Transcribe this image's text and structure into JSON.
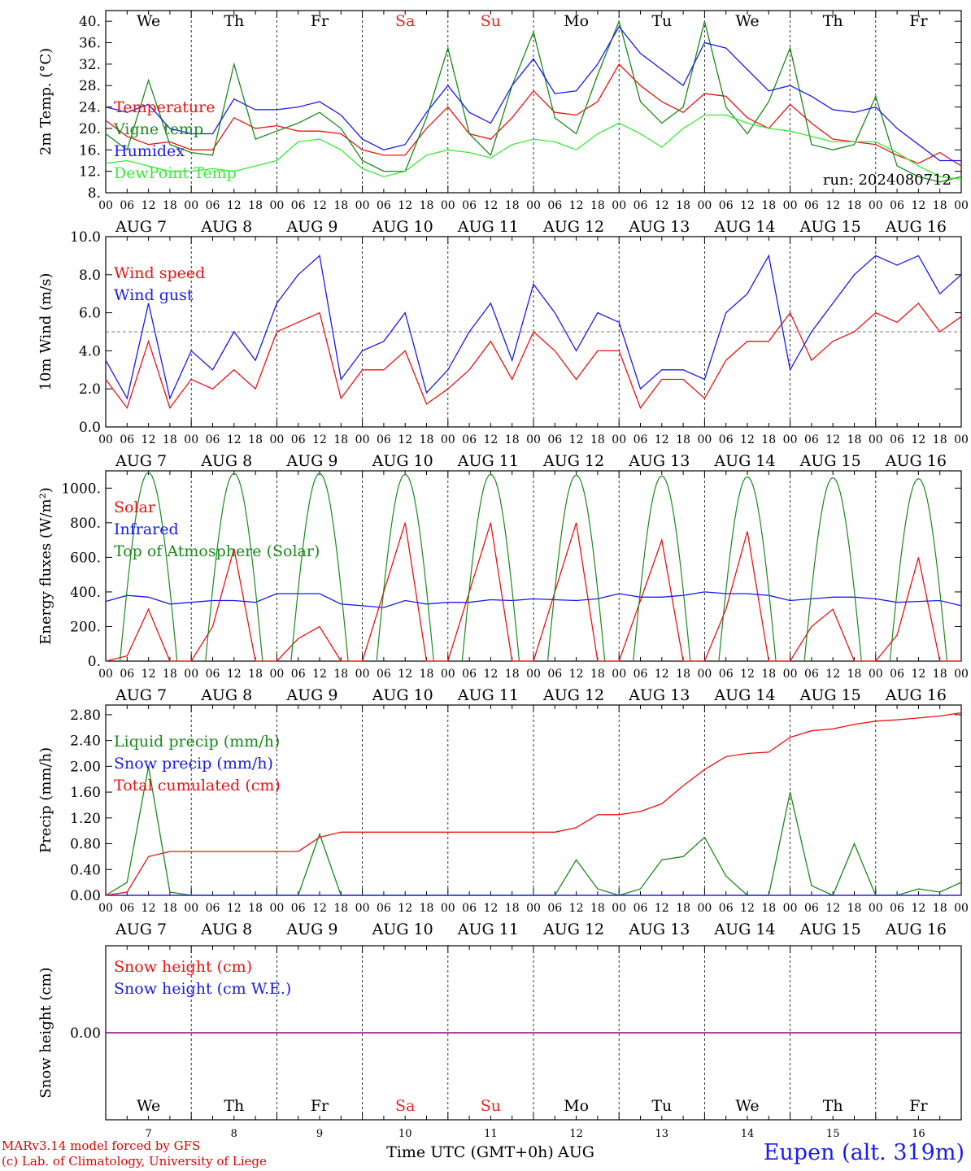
{
  "colors": {
    "red": "#ee1111",
    "green": "#1a8a1a",
    "blue": "#1a1aee",
    "lightgreen": "#33ee33",
    "purple": "#800080",
    "weekend": "#ee2222"
  },
  "time_axis": {
    "hour_labels": [
      "00",
      "06",
      "12",
      "18"
    ],
    "final_hour": "00",
    "dates": [
      "AUG  7",
      "AUG  8",
      "AUG  9",
      "AUG 10",
      "AUG 11",
      "AUG 12",
      "AUG 13",
      "AUG 14",
      "AUG 15",
      "AUG 16"
    ],
    "weekdays": [
      {
        "label": "We",
        "weekend": false
      },
      {
        "label": "Th",
        "weekend": false
      },
      {
        "label": "Fr",
        "weekend": false
      },
      {
        "label": "Sa",
        "weekend": true
      },
      {
        "label": "Su",
        "weekend": true
      },
      {
        "label": "Mo",
        "weekend": false
      },
      {
        "label": "Tu",
        "weekend": false
      },
      {
        "label": "We",
        "weekend": false
      },
      {
        "label": "Th",
        "weekend": false
      },
      {
        "label": "Fr",
        "weekend": false
      }
    ],
    "day_numbers": [
      "7",
      "8",
      "9",
      "10",
      "11",
      "12",
      "13",
      "14",
      "15",
      "16"
    ],
    "xlabel": "Time UTC (GMT+0h)",
    "month": "AUG"
  },
  "chart_data": [
    {
      "type": "line",
      "ylabel": "2m Temp. (°C)",
      "ylim": [
        8,
        42
      ],
      "yticks": [
        "8.",
        "12.",
        "16.",
        "20.",
        "24.",
        "28.",
        "32.",
        "36.",
        "40."
      ],
      "annotation": "run: 2024080712",
      "x_hours": [
        0,
        6,
        12,
        18,
        24,
        30,
        36,
        42,
        48,
        54,
        60,
        66,
        72,
        78,
        84,
        90,
        96,
        102,
        108,
        114,
        120,
        126,
        132,
        138,
        144,
        150,
        156,
        162,
        168,
        174,
        180,
        186,
        192,
        198,
        204,
        210,
        216,
        222,
        228,
        234,
        240
      ],
      "series": [
        {
          "name": "Temperature",
          "color": "red",
          "values": [
            21.5,
            18.5,
            17,
            17.5,
            16,
            16,
            22,
            20,
            20.5,
            19.5,
            19.5,
            19,
            16,
            15,
            15,
            20,
            24,
            19,
            18,
            22,
            27,
            23,
            22.5,
            25,
            32,
            28,
            25,
            23,
            26.5,
            26,
            22,
            20,
            24.5,
            21,
            18,
            17.5,
            17,
            15,
            13.5,
            15.5,
            13
          ]
        },
        {
          "name": "Vigne temp",
          "color": "green",
          "values": [
            19,
            16,
            29,
            17,
            15.5,
            15,
            32,
            18,
            19.5,
            21,
            23,
            20,
            14,
            12,
            12,
            22,
            35,
            19,
            15,
            28,
            38,
            22,
            19,
            30,
            40,
            25,
            21,
            24,
            40,
            24,
            19,
            25,
            35,
            17,
            16,
            17,
            26,
            13,
            11,
            10,
            11
          ]
        },
        {
          "name": "Humidex",
          "color": "blue",
          "values": [
            24,
            23,
            24.5,
            20,
            19,
            19,
            25.5,
            23.5,
            23.5,
            24,
            25,
            22.5,
            18,
            16,
            17,
            23,
            28,
            23,
            21,
            28,
            33,
            26.5,
            27,
            32,
            39,
            34,
            31,
            28,
            36,
            35,
            31,
            27,
            28,
            26,
            23.5,
            23,
            24,
            20,
            17,
            14,
            14
          ]
        },
        {
          "name": "DewPoint Temp",
          "color": "lightgreen",
          "values": [
            13.5,
            14,
            13,
            12,
            12,
            12.5,
            12,
            13,
            14,
            17.5,
            18,
            16,
            12.5,
            11,
            12,
            15,
            16,
            15.5,
            14.5,
            17,
            18,
            17.5,
            16,
            19,
            21,
            19,
            16.5,
            20,
            22.5,
            22.5,
            21,
            20,
            19.5,
            18.5,
            17.5,
            17.5,
            17.5,
            15.5,
            13,
            11,
            10.5
          ]
        }
      ]
    },
    {
      "type": "line",
      "ylabel": "10m Wind (m/s)",
      "ylim": [
        0,
        10
      ],
      "yticks": [
        "0.0",
        "2.0",
        "4.0",
        "6.0",
        "8.0",
        "10.0"
      ],
      "reference_line": 5,
      "x_hours": [
        0,
        6,
        12,
        18,
        24,
        30,
        36,
        42,
        48,
        54,
        60,
        66,
        72,
        78,
        84,
        90,
        96,
        102,
        108,
        114,
        120,
        126,
        132,
        138,
        144,
        150,
        156,
        162,
        168,
        174,
        180,
        186,
        192,
        198,
        204,
        210,
        216,
        222,
        228,
        234,
        240
      ],
      "series": [
        {
          "name": "Wind speed",
          "color": "red",
          "values": [
            2.5,
            1,
            4.5,
            1,
            2.5,
            2,
            3,
            2,
            5,
            5.5,
            6,
            1.5,
            3,
            3,
            4,
            1.2,
            2,
            3,
            4.5,
            2.5,
            5,
            4,
            2.5,
            4,
            4,
            1,
            2.5,
            2.5,
            1.5,
            3.5,
            4.5,
            4.5,
            6,
            3.5,
            4.5,
            5,
            6,
            5.5,
            6.5,
            5,
            5.8
          ]
        },
        {
          "name": "Wind gust",
          "color": "blue",
          "values": [
            3.5,
            1.5,
            6.5,
            1.5,
            4,
            3,
            5,
            3.5,
            6.5,
            8,
            9,
            2.5,
            4,
            4.5,
            6,
            1.8,
            3,
            5,
            6.5,
            3.5,
            7.5,
            6,
            4,
            6,
            5.5,
            2,
            3,
            3,
            2.5,
            6,
            7,
            9,
            3,
            5,
            6.5,
            8,
            9,
            8.5,
            9,
            7,
            8
          ]
        }
      ]
    },
    {
      "type": "line",
      "ylabel": "Energy fluxes (W/m²)",
      "ylim": [
        0,
        1100
      ],
      "yticks": [
        "0.",
        "200.",
        "400.",
        "600.",
        "800.",
        "1000."
      ],
      "x_hours": [
        0,
        6,
        12,
        18,
        24,
        30,
        36,
        42,
        48,
        54,
        60,
        66,
        72,
        78,
        84,
        90,
        96,
        102,
        108,
        114,
        120,
        126,
        132,
        138,
        144,
        150,
        156,
        162,
        168,
        174,
        180,
        186,
        192,
        198,
        204,
        210,
        216,
        222,
        228,
        234,
        240
      ],
      "series": [
        {
          "name": "Solar",
          "color": "red",
          "values": [
            0,
            30,
            300,
            0,
            0,
            200,
            650,
            0,
            0,
            130,
            200,
            0,
            0,
            400,
            800,
            0,
            0,
            400,
            800,
            0,
            0,
            400,
            800,
            0,
            0,
            350,
            700,
            0,
            0,
            300,
            750,
            0,
            0,
            200,
            300,
            0,
            0,
            150,
            600,
            0,
            0
          ]
        },
        {
          "name": "Infrared",
          "color": "blue",
          "values": [
            345,
            380,
            370,
            330,
            340,
            350,
            350,
            340,
            390,
            390,
            390,
            330,
            320,
            310,
            350,
            330,
            340,
            340,
            355,
            350,
            360,
            355,
            350,
            360,
            390,
            370,
            370,
            380,
            400,
            390,
            390,
            380,
            350,
            360,
            370,
            370,
            360,
            340,
            345,
            350,
            320
          ]
        },
        {
          "name": "Top of Atmosphere (Solar)",
          "color": "green",
          "top_of_atmosphere_peak": [
            1090,
            1085,
            1085,
            1080,
            1080,
            1075,
            1070,
            1065,
            1060,
            1055
          ]
        }
      ]
    },
    {
      "type": "line",
      "ylabel": "Precip (mm/h)",
      "ylim": [
        0,
        2.95
      ],
      "yticks": [
        "0.00",
        "0.40",
        "0.80",
        "1.20",
        "1.60",
        "2.00",
        "2.40",
        "2.80"
      ],
      "x_hours": [
        0,
        6,
        12,
        18,
        24,
        30,
        36,
        42,
        48,
        54,
        60,
        66,
        72,
        78,
        84,
        90,
        96,
        102,
        108,
        114,
        120,
        126,
        132,
        138,
        144,
        150,
        156,
        162,
        168,
        174,
        180,
        186,
        192,
        198,
        204,
        210,
        216,
        222,
        228,
        234,
        240
      ],
      "series": [
        {
          "name": "Liquid precip (mm/h)",
          "color": "green",
          "values": [
            0,
            0.2,
            2.0,
            0.05,
            0,
            0,
            0,
            0,
            0,
            0,
            0.95,
            0,
            0,
            0,
            0,
            0,
            0,
            0,
            0,
            0,
            0,
            0,
            0.55,
            0.1,
            0,
            0.1,
            0.55,
            0.6,
            0.9,
            0.3,
            0,
            0,
            1.6,
            0.15,
            0,
            0.8,
            0,
            0,
            0.1,
            0.05,
            0.2
          ]
        },
        {
          "name": "Snow precip (mm/h)",
          "color": "blue",
          "values": [
            0,
            0,
            0,
            0,
            0,
            0,
            0,
            0,
            0,
            0,
            0,
            0,
            0,
            0,
            0,
            0,
            0,
            0,
            0,
            0,
            0,
            0,
            0,
            0,
            0,
            0,
            0,
            0,
            0,
            0,
            0,
            0,
            0,
            0,
            0,
            0,
            0,
            0,
            0,
            0,
            0
          ]
        },
        {
          "name": "Total cumulated (cm)",
          "color": "red",
          "values": [
            0,
            0.05,
            0.6,
            0.68,
            0.68,
            0.68,
            0.68,
            0.68,
            0.68,
            0.68,
            0.9,
            0.98,
            0.98,
            0.98,
            0.98,
            0.98,
            0.98,
            0.98,
            0.98,
            0.98,
            0.98,
            0.98,
            1.05,
            1.25,
            1.25,
            1.3,
            1.42,
            1.7,
            1.95,
            2.15,
            2.2,
            2.22,
            2.45,
            2.55,
            2.58,
            2.65,
            2.7,
            2.72,
            2.75,
            2.78,
            2.83
          ]
        }
      ]
    },
    {
      "type": "line",
      "ylabel": "Snow height (cm)",
      "yticks": [
        "0.00"
      ],
      "series": [
        {
          "name": "Snow height (cm)",
          "color": "red",
          "values": [
            0,
            0
          ]
        },
        {
          "name": "Snow height (cm W.E.)",
          "color": "blue",
          "values": [
            0,
            0
          ]
        }
      ]
    }
  ],
  "footer": {
    "model_line": "MARv3.14 model forced by GFS",
    "credit_line": "(c) Lab. of Climatology, University of Liege",
    "station": "Eupen (alt. 319m)"
  }
}
